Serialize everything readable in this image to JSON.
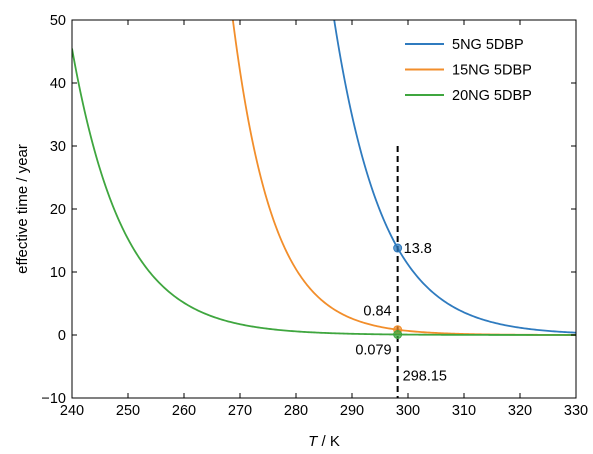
{
  "chart_data": {
    "type": "line",
    "xlabel_italic": "T",
    "xlabel_rest": " / K",
    "ylabel": "effective time / year",
    "xlim": [
      240,
      330
    ],
    "ylim": [
      -10,
      50
    ],
    "xticks": [
      240,
      250,
      260,
      270,
      280,
      290,
      300,
      310,
      320,
      330
    ],
    "yticks": [
      -10,
      0,
      10,
      20,
      30,
      40,
      50
    ],
    "grid": false,
    "legend_position": "top-right",
    "series": [
      {
        "name": "5NG 5DBP",
        "color": "#2f7bbf",
        "model": "exponential",
        "value_at_ref": 13.8,
        "e_fold_K": 8.8
      },
      {
        "name": "15NG 5DBP",
        "color": "#f28e2b",
        "model": "exponential",
        "value_at_ref": 0.84,
        "e_fold_K": 7.2
      },
      {
        "name": "20NG 5DBP",
        "color": "#3fa63f",
        "model": "exponential",
        "value_at_ref": 0.079,
        "e_fold_K": 9.15
      }
    ],
    "reference_line": {
      "x": 298.15,
      "label": "298.15",
      "style": "dashed",
      "y_range": [
        -10,
        30
      ]
    },
    "annotations": [
      {
        "series": "5NG 5DBP",
        "x": 298.15,
        "y": 13.8,
        "label": "13.8"
      },
      {
        "series": "15NG 5DBP",
        "x": 298.15,
        "y": 0.84,
        "label": "0.84"
      },
      {
        "series": "20NG 5DBP",
        "x": 298.15,
        "y": 0.079,
        "label": "0.079"
      }
    ]
  }
}
